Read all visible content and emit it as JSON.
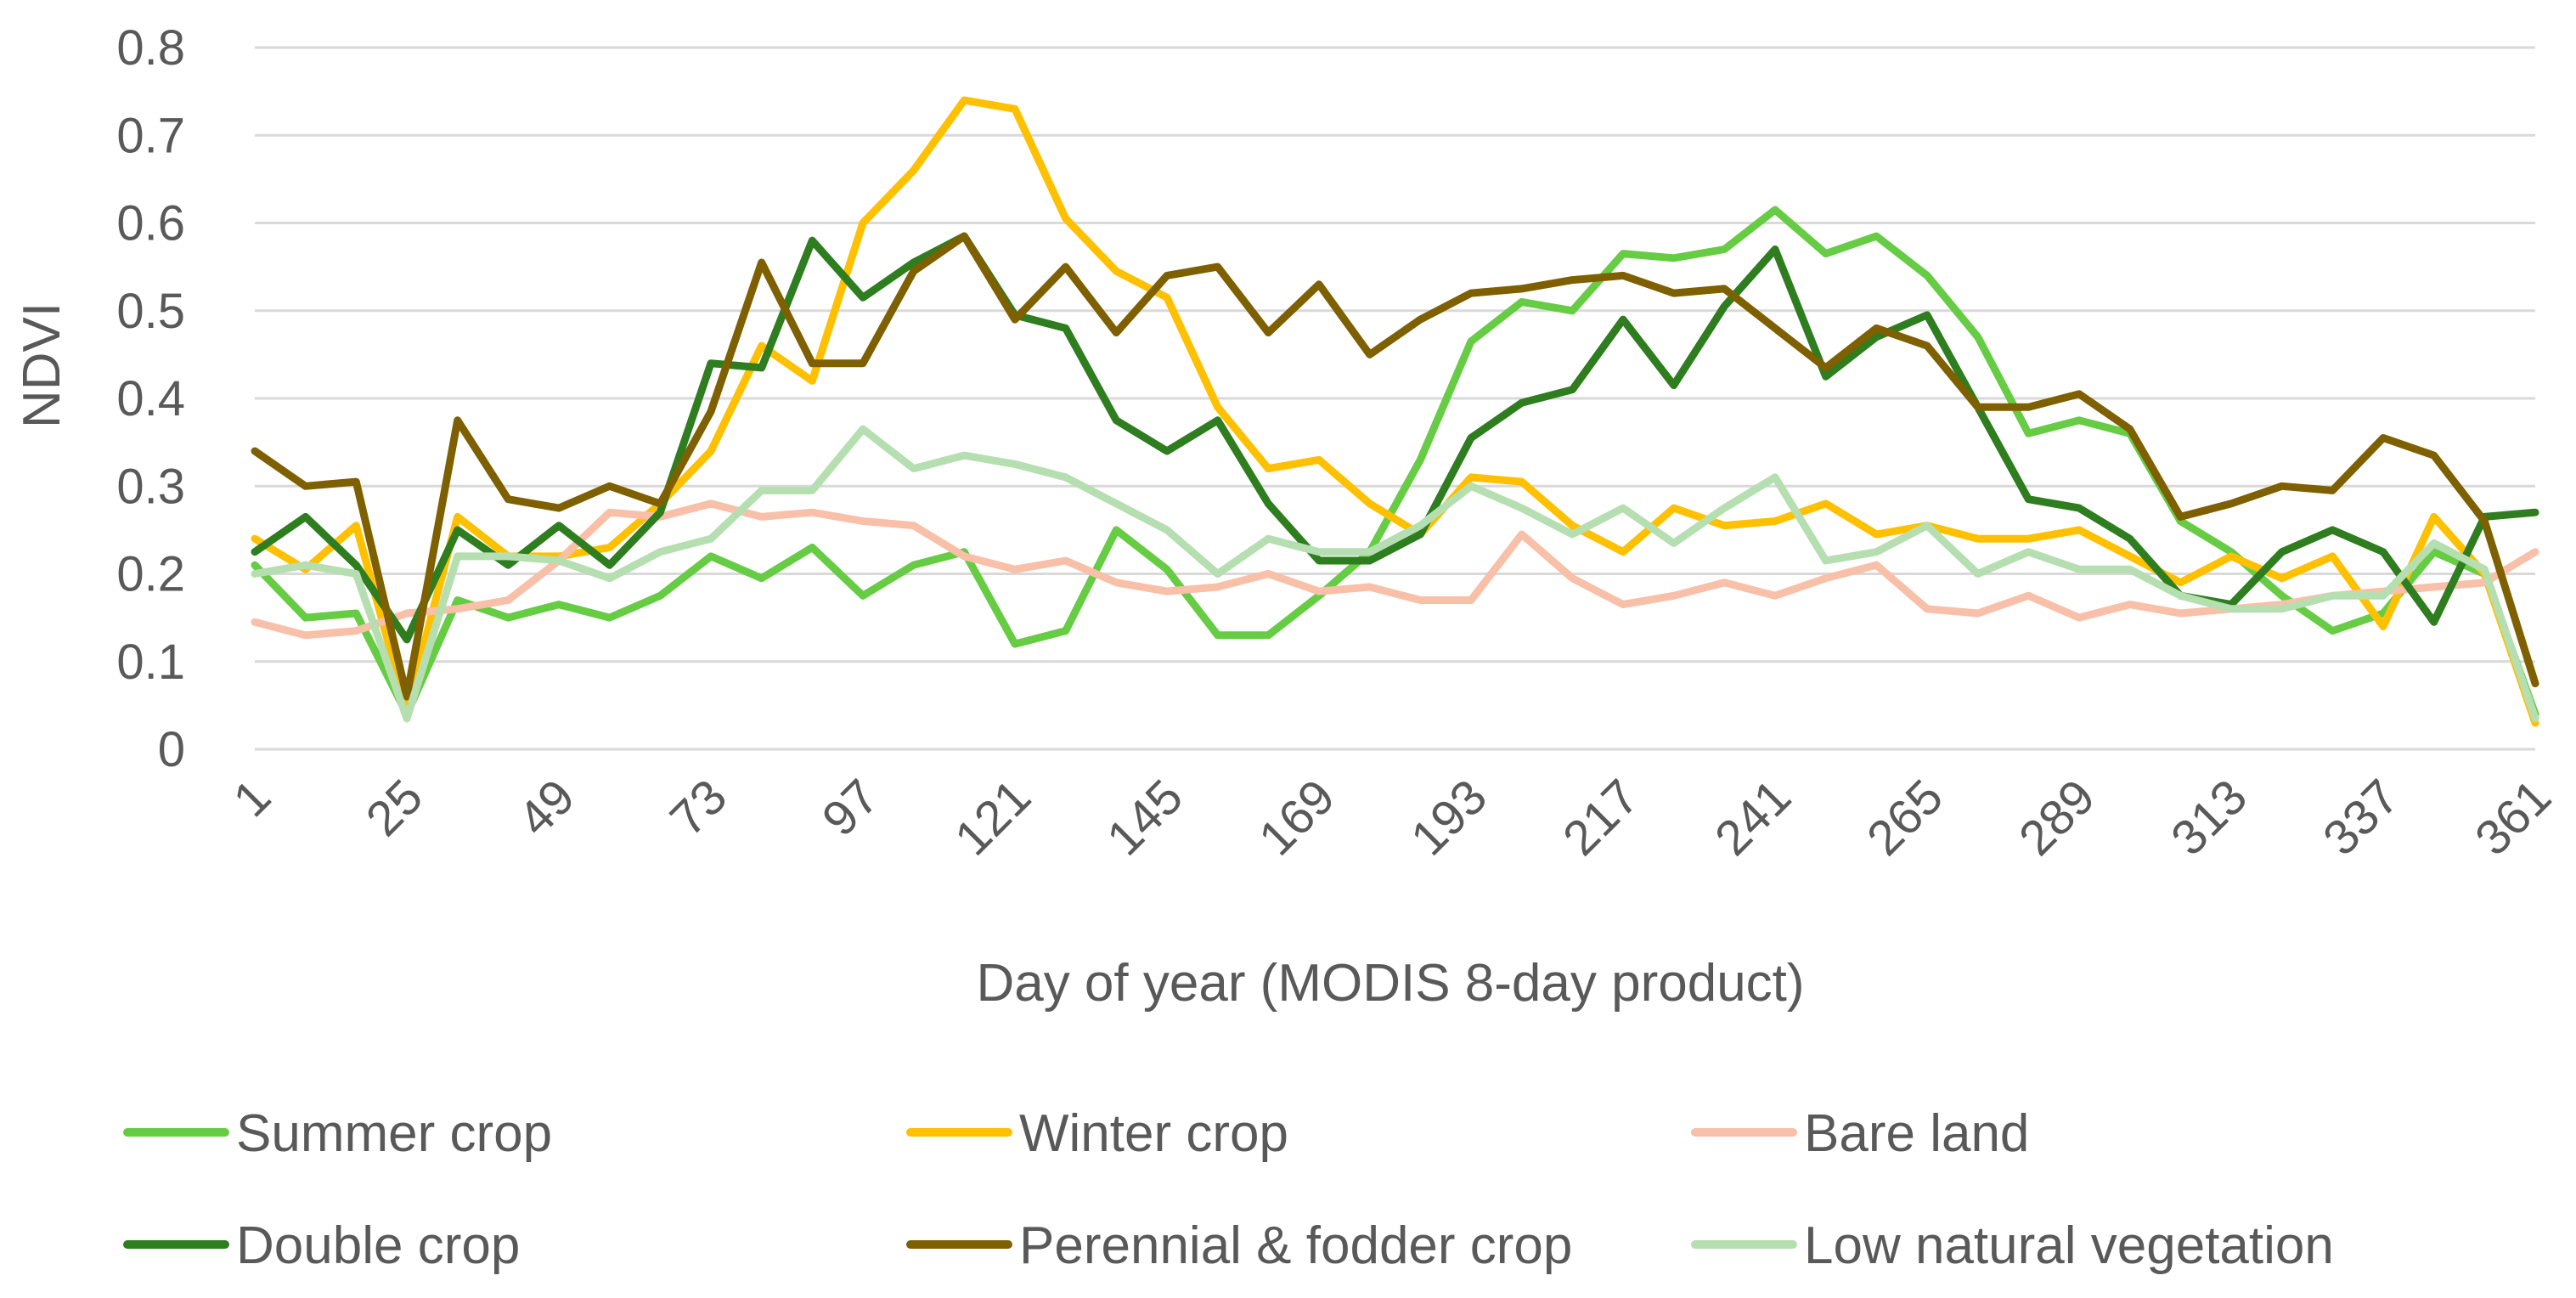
{
  "chart_data": {
    "type": "line",
    "title": "",
    "xlabel": "Day of year (MODIS 8-day product)",
    "ylabel": "NDVI",
    "ylim": [
      0,
      0.8
    ],
    "yticks": [
      "0",
      "0.1",
      "0.2",
      "0.3",
      "0.4",
      "0.5",
      "0.6",
      "0.7",
      "0.8"
    ],
    "x": [
      1,
      9,
      17,
      25,
      33,
      41,
      49,
      57,
      65,
      73,
      81,
      89,
      97,
      105,
      113,
      121,
      129,
      137,
      145,
      153,
      161,
      169,
      177,
      185,
      193,
      201,
      209,
      217,
      225,
      233,
      241,
      249,
      257,
      265,
      273,
      281,
      289,
      297,
      305,
      313,
      321,
      329,
      337,
      345,
      353,
      361
    ],
    "xticks": [
      "1",
      "25",
      "49",
      "73",
      "97",
      "121",
      "145",
      "169",
      "193",
      "217",
      "241",
      "265",
      "289",
      "313",
      "337",
      "361"
    ],
    "grid": true,
    "legend_position": "bottom",
    "series": [
      {
        "name": "Summer crop",
        "color": "#66cc44",
        "values": [
          0.21,
          0.15,
          0.155,
          0.04,
          0.17,
          0.15,
          0.165,
          0.15,
          0.175,
          0.22,
          0.195,
          0.23,
          0.175,
          0.21,
          0.225,
          0.12,
          0.135,
          0.25,
          0.205,
          0.13,
          0.13,
          0.175,
          0.225,
          0.33,
          0.465,
          0.51,
          0.5,
          0.565,
          0.56,
          0.57,
          0.615,
          0.565,
          0.585,
          0.54,
          0.47,
          0.36,
          0.375,
          0.36,
          0.26,
          0.225,
          0.175,
          0.135,
          0.155,
          0.225,
          0.2,
          0.04
        ]
      },
      {
        "name": "Winter crop",
        "color": "#ffc000",
        "values": [
          0.24,
          0.205,
          0.255,
          0.045,
          0.265,
          0.22,
          0.22,
          0.23,
          0.28,
          0.34,
          0.46,
          0.42,
          0.6,
          0.66,
          0.74,
          0.73,
          0.605,
          0.545,
          0.515,
          0.39,
          0.32,
          0.33,
          0.28,
          0.245,
          0.31,
          0.305,
          0.255,
          0.225,
          0.275,
          0.255,
          0.26,
          0.28,
          0.245,
          0.255,
          0.24,
          0.24,
          0.25,
          0.22,
          0.19,
          0.22,
          0.195,
          0.22,
          0.14,
          0.265,
          0.2,
          0.03
        ]
      },
      {
        "name": "Bare land",
        "color": "#f8c0a8",
        "values": [
          0.145,
          0.13,
          0.135,
          0.155,
          0.16,
          0.17,
          0.215,
          0.27,
          0.265,
          0.28,
          0.265,
          0.27,
          0.26,
          0.255,
          0.22,
          0.205,
          0.215,
          0.19,
          0.18,
          0.185,
          0.2,
          0.18,
          0.185,
          0.17,
          0.17,
          0.245,
          0.195,
          0.165,
          0.175,
          0.19,
          0.175,
          0.195,
          0.21,
          0.16,
          0.155,
          0.175,
          0.15,
          0.165,
          0.155,
          0.16,
          0.165,
          0.175,
          0.18,
          0.185,
          0.19,
          0.225
        ]
      },
      {
        "name": "Double crop",
        "color": "#2e7d1e",
        "values": [
          0.225,
          0.265,
          0.21,
          0.125,
          0.25,
          0.21,
          0.255,
          0.21,
          0.27,
          0.44,
          0.435,
          0.58,
          0.515,
          0.555,
          0.585,
          0.495,
          0.48,
          0.375,
          0.34,
          0.375,
          0.28,
          0.215,
          0.215,
          0.245,
          0.355,
          0.395,
          0.41,
          0.49,
          0.415,
          0.505,
          0.57,
          0.425,
          0.47,
          0.495,
          0.39,
          0.285,
          0.275,
          0.24,
          0.175,
          0.165,
          0.225,
          0.25,
          0.225,
          0.145,
          0.265,
          0.27
        ]
      },
      {
        "name": "Perennial & fodder crop",
        "color": "#7f6000",
        "values": [
          0.34,
          0.3,
          0.305,
          0.06,
          0.375,
          0.285,
          0.275,
          0.3,
          0.28,
          0.385,
          0.555,
          0.44,
          0.44,
          0.545,
          0.585,
          0.49,
          0.55,
          0.475,
          0.54,
          0.55,
          0.475,
          0.53,
          0.45,
          0.49,
          0.52,
          0.525,
          0.535,
          0.54,
          0.52,
          0.525,
          0.48,
          0.435,
          0.48,
          0.46,
          0.39,
          0.39,
          0.405,
          0.365,
          0.265,
          0.28,
          0.3,
          0.295,
          0.355,
          0.335,
          0.26,
          0.075
        ]
      },
      {
        "name": "Low natural vegetation",
        "color": "#b5dfb0",
        "values": [
          0.2,
          0.21,
          0.2,
          0.035,
          0.22,
          0.22,
          0.215,
          0.195,
          0.225,
          0.24,
          0.295,
          0.295,
          0.365,
          0.32,
          0.335,
          0.325,
          0.31,
          0.28,
          0.25,
          0.2,
          0.24,
          0.225,
          0.225,
          0.255,
          0.3,
          0.275,
          0.245,
          0.275,
          0.235,
          0.275,
          0.31,
          0.215,
          0.225,
          0.255,
          0.2,
          0.225,
          0.205,
          0.205,
          0.175,
          0.16,
          0.16,
          0.175,
          0.175,
          0.235,
          0.205,
          0.035
        ]
      }
    ]
  }
}
